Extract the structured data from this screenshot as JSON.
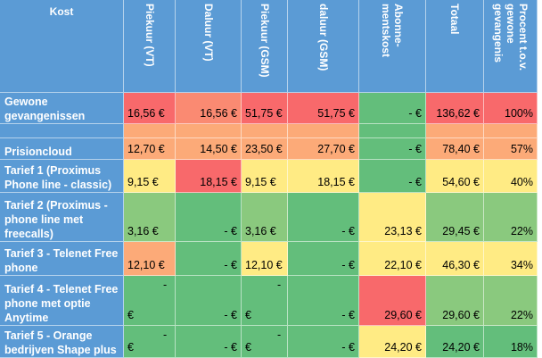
{
  "table": {
    "headers": [
      "Kost",
      "Piekuur (VT)",
      "Daluur (VT)",
      "Piekuur (GSM)",
      "daluur (GSM)",
      "Abonne-mentskost",
      "Totaal",
      "Procent t.o.v. gewone gevangenis"
    ],
    "rows": [
      {
        "label": "Gewone gevangenissen",
        "cells": [
          "16,56 €",
          "16,56 €",
          "51,75 €",
          "51,75 €",
          "-  €",
          "136,62 €",
          "100%"
        ]
      },
      {
        "label": "Prisioncloud",
        "cells": [
          "12,70 €",
          "14,50 €",
          "23,50 €",
          "27,70 €",
          "-  €",
          "78,40 €",
          "57%"
        ]
      },
      {
        "label": "Tarief 1 (Proximus Phone line - classic)",
        "cells": [
          "9,15 €",
          "18,15 €",
          "9,15 €",
          "18,15 €",
          "-  €",
          "54,60 €",
          "40%"
        ]
      },
      {
        "label": "Tarief 2 (Proximus - phone line met freecalls)",
        "cells": [
          "3,16 €",
          "-  €",
          "3,16 €",
          "-  €",
          "23,13 €",
          "29,45 €",
          "22%"
        ]
      },
      {
        "label": "Tarief 3 - Telenet Free phone",
        "cells": [
          "12,10 €",
          "-  €",
          "12,10 €",
          "-  €",
          "22,10 €",
          "46,30 €",
          "34%"
        ]
      },
      {
        "label": "Tarief 4 - Telenet Free phone met optie Anytime",
        "cells": [
          "€",
          "-  €",
          "€",
          "-  €",
          "29,60 €",
          "29,60 €",
          "22%"
        ]
      },
      {
        "label": "Tarief 5 - Orange bedrijven Shape plus",
        "cells": [
          "€",
          "-  €",
          "€",
          "-  €",
          "24,20 €",
          "24,20 €",
          "18%"
        ]
      }
    ]
  },
  "colors": {
    "header_blue": "#5b9bd5",
    "red": "#f8696b",
    "orange_red": "#fa8a72",
    "orange": "#fcaa78",
    "yellow": "#ffeb84",
    "light_green": "#b1d580",
    "green": "#63be7b",
    "mid_green": "#8ac97e"
  }
}
